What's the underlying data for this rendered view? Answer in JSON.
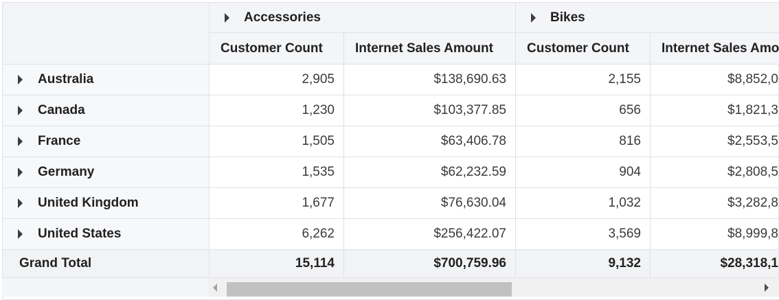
{
  "column_groups": [
    {
      "label": "Accessories",
      "icon": "expand-triangle-icon"
    },
    {
      "label": "Bikes",
      "icon": "expand-triangle-icon"
    }
  ],
  "measures": [
    "Customer Count",
    "Internet Sales Amount",
    "Customer Count",
    "Internet Sales Amo"
  ],
  "rows": [
    {
      "label": "Australia",
      "values": [
        "2,905",
        "$138,690.63",
        "2,155",
        "$8,852,0"
      ]
    },
    {
      "label": "Canada",
      "values": [
        "1,230",
        "$103,377.85",
        "656",
        "$1,821,3"
      ]
    },
    {
      "label": "France",
      "values": [
        "1,505",
        "$63,406.78",
        "816",
        "$2,553,5"
      ]
    },
    {
      "label": "Germany",
      "values": [
        "1,535",
        "$62,232.59",
        "904",
        "$2,808,5"
      ]
    },
    {
      "label": "United Kingdom",
      "values": [
        "1,677",
        "$76,630.04",
        "1,032",
        "$3,282,8"
      ]
    },
    {
      "label": "United States",
      "values": [
        "6,262",
        "$256,422.07",
        "3,569",
        "$8,999,8"
      ]
    }
  ],
  "grand_total": {
    "label": "Grand Total",
    "values": [
      "15,114",
      "$700,759.96",
      "9,132",
      "$28,318,1"
    ]
  },
  "colors": {
    "header_bg": "#f4f5f7",
    "border": "#dfe1e6",
    "scroll_thumb": "#c1c1c1"
  }
}
